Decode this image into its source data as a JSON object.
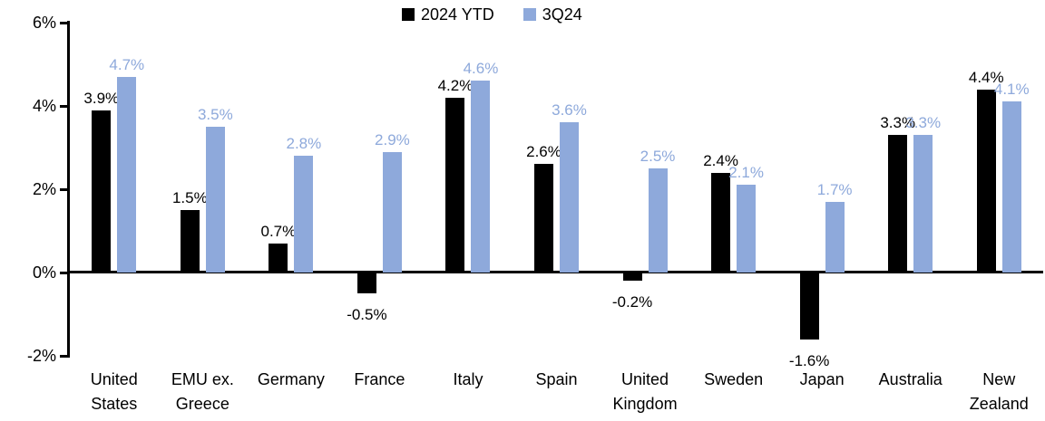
{
  "chart_data": {
    "type": "bar",
    "title": "",
    "categories": [
      "United States",
      "EMU ex. Greece",
      "Germany",
      "France",
      "Italy",
      "Spain",
      "United Kingdom",
      "Sweden",
      "Japan",
      "Australia",
      "New Zealand"
    ],
    "series": [
      {
        "name": "2024 YTD",
        "color": "#000000",
        "values": [
          3.9,
          1.5,
          0.7,
          -0.5,
          4.2,
          2.6,
          -0.2,
          2.4,
          -1.6,
          3.3,
          4.4
        ]
      },
      {
        "name": "3Q24",
        "color": "#8EA9DB",
        "values": [
          4.7,
          3.5,
          2.8,
          2.9,
          4.6,
          3.6,
          2.5,
          2.1,
          1.7,
          3.3,
          4.1
        ]
      }
    ],
    "data_labels": [
      {
        "series": "2024 YTD",
        "labels": [
          "3.9%",
          "1.5%",
          "0.7%",
          "-0.5%",
          "4.2%",
          "2.6%",
          "-0.2%",
          "2.4%",
          "-1.6%",
          "3.3%",
          "4.4%"
        ]
      },
      {
        "series": "3Q24",
        "labels": [
          "4.7%",
          "3.5%",
          "2.8%",
          "2.9%",
          "4.6%",
          "3.6%",
          "2.5%",
          "2.1%",
          "1.7%",
          "3.3%",
          "4.1%"
        ]
      }
    ],
    "y_ticks": [
      {
        "label": "6%",
        "value": 6
      },
      {
        "label": "4%",
        "value": 4
      },
      {
        "label": "2%",
        "value": 2
      },
      {
        "label": "0%",
        "value": 0
      },
      {
        "label": "-2%",
        "value": -2
      }
    ],
    "ylim": [
      -2,
      6
    ],
    "xlabel": "",
    "ylabel": "",
    "grid": false,
    "legend_position": "top-center",
    "value_suffix": "%"
  },
  "colors": {
    "series_2024_ytd": "#000000",
    "series_3q24": "#8EA9DB",
    "axis": "#000000",
    "background": "#FFFFFF"
  }
}
